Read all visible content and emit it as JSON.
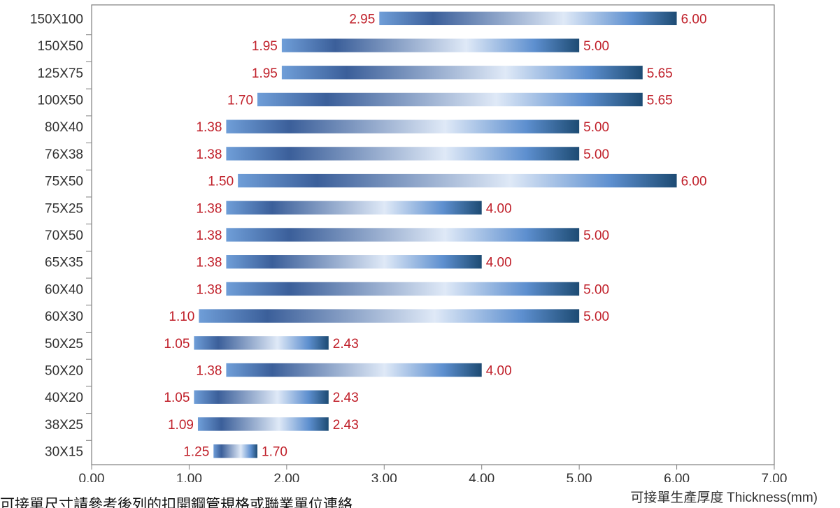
{
  "chart_data": {
    "type": "bar",
    "orientation": "horizontal",
    "subtype": "floating-range",
    "categories": [
      "150X100",
      "150X50",
      "125X75",
      "100X50",
      "80X40",
      "76X38",
      "75X50",
      "75X25",
      "70X50",
      "65X35",
      "60X40",
      "60X30",
      "50X25",
      "50X20",
      "40X20",
      "38X25",
      "30X15"
    ],
    "min_values": [
      2.95,
      1.95,
      1.95,
      1.7,
      1.38,
      1.38,
      1.5,
      1.38,
      1.38,
      1.38,
      1.38,
      1.1,
      1.05,
      1.38,
      1.05,
      1.09,
      1.25
    ],
    "max_values": [
      6.0,
      5.0,
      5.65,
      5.65,
      5.0,
      5.0,
      6.0,
      4.0,
      5.0,
      4.0,
      5.0,
      5.0,
      2.43,
      4.0,
      2.43,
      2.43,
      1.7
    ],
    "min_labels": [
      "2.95",
      "1.95",
      "1.95",
      "1.70",
      "1.38",
      "1.38",
      "1.50",
      "1.38",
      "1.38",
      "1.38",
      "1.38",
      "1.10",
      "1.05",
      "1.38",
      "1.05",
      "1.09",
      "1.25"
    ],
    "max_labels": [
      "6.00",
      "5.00",
      "5.65",
      "5.65",
      "5.00",
      "5.00",
      "6.00",
      "4.00",
      "5.00",
      "4.00",
      "5.00",
      "5.00",
      "2.43",
      "4.00",
      "2.43",
      "2.43",
      "1.70"
    ],
    "xlim": [
      0,
      7
    ],
    "xticks": [
      "0.00",
      "1.00",
      "2.00",
      "3.00",
      "4.00",
      "5.00",
      "6.00",
      "7.00"
    ],
    "xlabel_cjk": "可接單生產厚度",
    "xlabel_en": "Thickness(mm)",
    "grid": false,
    "colors": {
      "bar_dark": "#1e4a78",
      "bar_mid": "#3d68a6",
      "bar_light": "#dce8f7",
      "bar_blue": "#5c8fd0",
      "label": "#c0202a",
      "axis": "#808080"
    }
  },
  "footnote": "可接單尺寸請參考後列的扣開鋼管規格或聯業單位連絡"
}
